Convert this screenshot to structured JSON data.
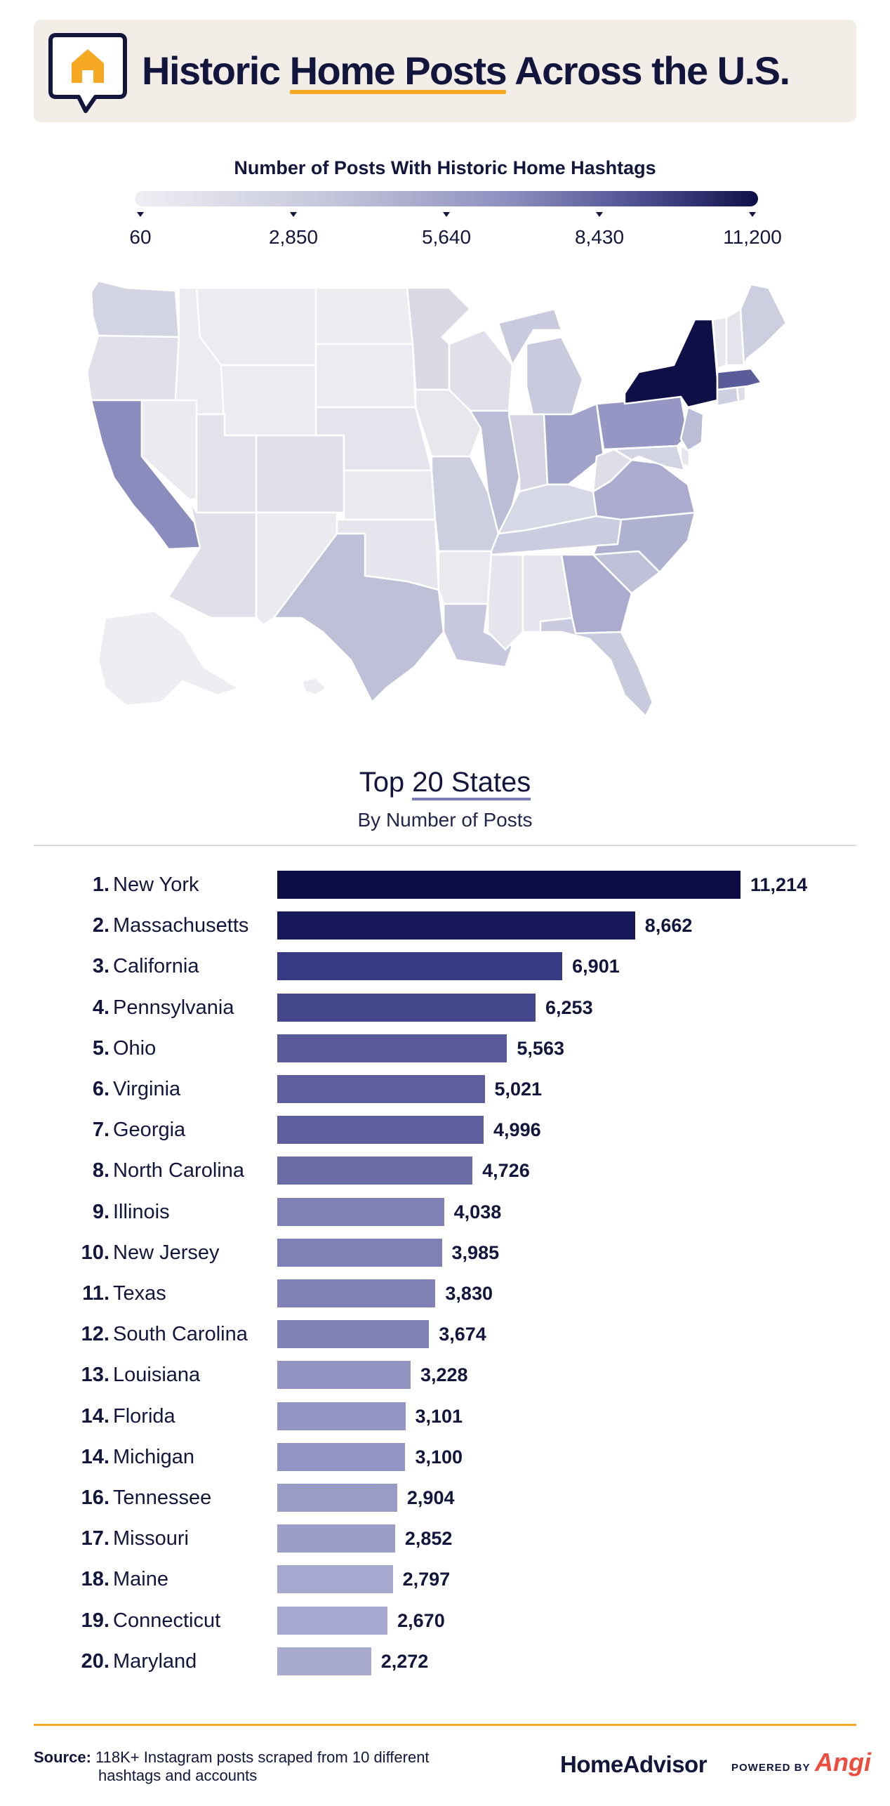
{
  "header": {
    "title_part1": "Historic ",
    "title_highlight": "Home Posts",
    "title_part2": " Across the U.S.",
    "icon": "house-speech-bubble-icon",
    "accent": "#f7a823"
  },
  "legend": {
    "title": "Number of Posts With Historic Home Hashtags",
    "ticks": [
      "60",
      "2,850",
      "5,640",
      "8,430",
      "11,200"
    ],
    "min": 60,
    "max": 11200,
    "color_low": "#efeff4",
    "color_high": "#0f0f47"
  },
  "subheading": {
    "title_part1": "Top ",
    "title_underlined": "20 States",
    "subtitle": "By Number of Posts"
  },
  "chart_data": {
    "type": "bar",
    "orientation": "horizontal",
    "title": "Top 20 States",
    "subtitle": "By Number of Posts",
    "categories": [
      "New York",
      "Massachusetts",
      "California",
      "Pennsylvania",
      "Ohio",
      "Virginia",
      "Georgia",
      "North Carolina",
      "Illinois",
      "New Jersey",
      "Texas",
      "South Carolina",
      "Louisiana",
      "Florida",
      "Michigan",
      "Tennessee",
      "Missouri",
      "Maine",
      "Connecticut",
      "Maryland"
    ],
    "ranks": [
      "1.",
      "2.",
      "3.",
      "4.",
      "5.",
      "6.",
      "7.",
      "8.",
      "9.",
      "10.",
      "11.",
      "12.",
      "13.",
      "14.",
      "14.",
      "16.",
      "17.",
      "18.",
      "19.",
      "20."
    ],
    "values": [
      11214,
      8662,
      6901,
      6253,
      5563,
      5021,
      4996,
      4726,
      4038,
      3985,
      3830,
      3674,
      3228,
      3101,
      3100,
      2904,
      2852,
      2797,
      2670,
      2272
    ],
    "value_labels": [
      "11,214",
      "8,662",
      "6,901",
      "6,253",
      "5,563",
      "5,021",
      "4,996",
      "4,726",
      "4,038",
      "3,985",
      "3,830",
      "3,674",
      "3,228",
      "3,101",
      "3,100",
      "2,904",
      "2,852",
      "2,797",
      "2,670",
      "2,272"
    ],
    "colors": [
      "#0d0c44",
      "#17185a",
      "#373a84",
      "#45478d",
      "#595b9b",
      "#5c5e9d",
      "#5c5e9d",
      "#6a6ca6",
      "#7e80b6",
      "#7e80b6",
      "#7f81b7",
      "#8082b8",
      "#9193c3",
      "#9395c4",
      "#9395c4",
      "#9a9cc8",
      "#9c9dc9",
      "#a7a8cf",
      "#a7a8cf",
      "#a9aad0"
    ],
    "xlim": [
      0,
      11214
    ],
    "grid": false,
    "legend": "none"
  },
  "map_data": {
    "type": "choropleth",
    "states": [
      {
        "id": "NY",
        "level": 1.0
      },
      {
        "id": "MA",
        "level": 0.77
      },
      {
        "id": "CA",
        "level": 0.61
      },
      {
        "id": "PA",
        "level": 0.56
      },
      {
        "id": "OH",
        "level": 0.5
      },
      {
        "id": "VA",
        "level": 0.45
      },
      {
        "id": "GA",
        "level": 0.45
      },
      {
        "id": "NC",
        "level": 0.42
      },
      {
        "id": "IL",
        "level": 0.36
      },
      {
        "id": "NJ",
        "level": 0.36
      },
      {
        "id": "TX",
        "level": 0.34
      },
      {
        "id": "SC",
        "level": 0.33
      },
      {
        "id": "LA",
        "level": 0.29
      },
      {
        "id": "FL",
        "level": 0.28
      },
      {
        "id": "MI",
        "level": 0.28
      },
      {
        "id": "TN",
        "level": 0.26
      },
      {
        "id": "MO",
        "level": 0.25
      },
      {
        "id": "ME",
        "level": 0.25
      },
      {
        "id": "CT",
        "level": 0.24
      },
      {
        "id": "MD",
        "level": 0.2
      },
      {
        "id": "WA",
        "level": 0.2
      },
      {
        "id": "IN",
        "level": 0.19
      },
      {
        "id": "KY",
        "level": 0.17
      },
      {
        "id": "MN",
        "level": 0.16
      },
      {
        "id": "WV",
        "level": 0.12
      },
      {
        "id": "WI",
        "level": 0.11
      },
      {
        "id": "OR",
        "level": 0.11
      },
      {
        "id": "AZ",
        "level": 0.11
      },
      {
        "id": "CO",
        "level": 0.1
      },
      {
        "id": "UT",
        "level": 0.09
      },
      {
        "id": "NE",
        "level": 0.08
      },
      {
        "id": "OK",
        "level": 0.07
      },
      {
        "id": "AL",
        "level": 0.08
      },
      {
        "id": "MS",
        "level": 0.07
      },
      {
        "id": "IA",
        "level": 0.05
      },
      {
        "id": "KS",
        "level": 0.04
      },
      {
        "id": "AR",
        "level": 0.04
      },
      {
        "id": "NM",
        "level": 0.03
      },
      {
        "id": "NV",
        "level": 0.03
      },
      {
        "id": "ID",
        "level": 0.02
      },
      {
        "id": "MT",
        "level": 0.02
      },
      {
        "id": "WY",
        "level": 0.02
      },
      {
        "id": "ND",
        "level": 0.01
      },
      {
        "id": "SD",
        "level": 0.02
      },
      {
        "id": "VT",
        "level": 0.05
      },
      {
        "id": "NH",
        "level": 0.08
      },
      {
        "id": "RI",
        "level": 0.12
      },
      {
        "id": "DE",
        "level": 0.06
      },
      {
        "id": "AK",
        "level": 0.0
      },
      {
        "id": "HI",
        "level": 0.0
      }
    ]
  },
  "footer": {
    "source_label": "Source:",
    "source_line1": " 118K+ Instagram posts scraped from 10 different",
    "source_line2": "hashtags and accounts",
    "brand": "HomeAdvisor",
    "powered_by": "POWERED BY",
    "partner": "Angi",
    "partner_color": "#ee4d3e"
  }
}
